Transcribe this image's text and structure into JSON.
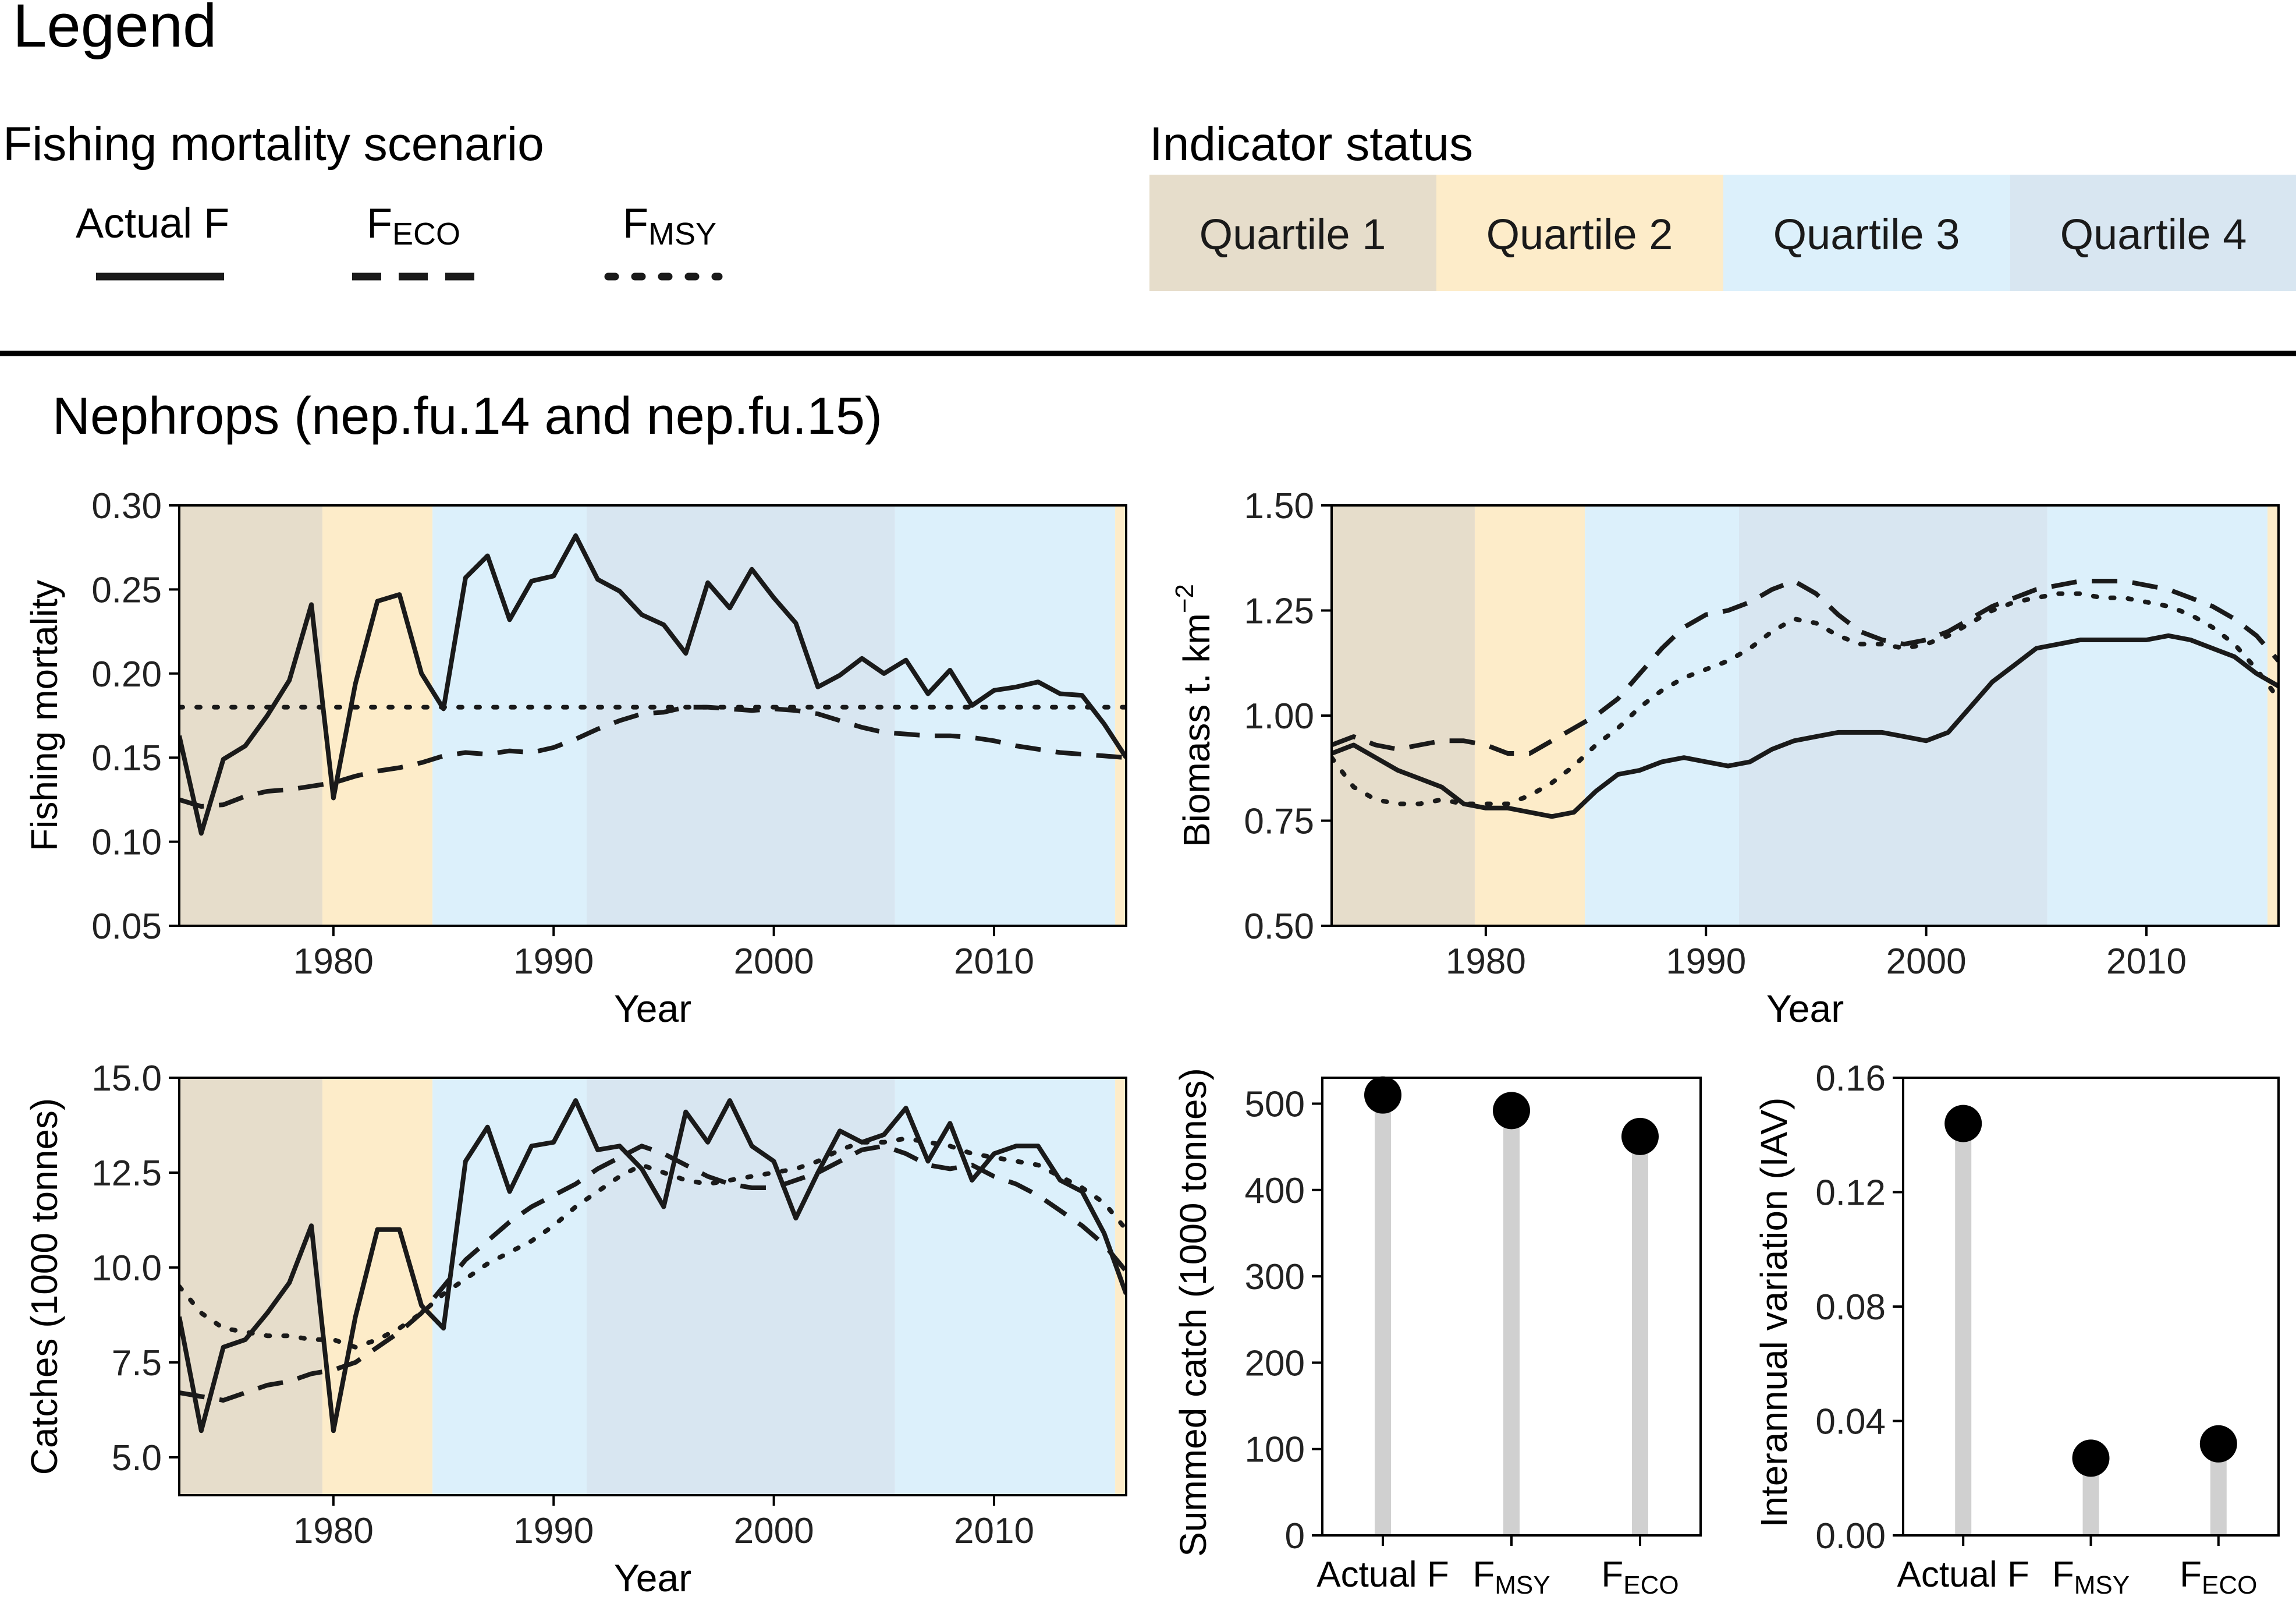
{
  "legend": {
    "heading": "Legend",
    "scenario_title": "Fishing mortality scenario",
    "scenarios": [
      {
        "key": "actual",
        "label": "Actual F",
        "sub": "",
        "style": "solid"
      },
      {
        "key": "feco",
        "label": "F",
        "sub": "ECO",
        "style": "dashed"
      },
      {
        "key": "fmsy",
        "label": "F",
        "sub": "MSY",
        "style": "dotted"
      }
    ],
    "status_title": "Indicator status",
    "quartiles": [
      {
        "label": "Quartile 1",
        "color": "#e6ddcb"
      },
      {
        "label": "Quartile 2",
        "color": "#fdecc9"
      },
      {
        "label": "Quartile 3",
        "color": "#dcf0fb"
      },
      {
        "label": "Quartile 4",
        "color": "#d8e6f1"
      }
    ]
  },
  "section_title": "Nephrops (nep.fu.14 and nep.fu.15)",
  "colors": {
    "line": "#1a1a1a",
    "frame": "#000000",
    "stem": "#d0d0d0",
    "dot": "#000000"
  },
  "bands": [
    {
      "from": 1973.0,
      "to": 1979.5,
      "q": 1
    },
    {
      "from": 1979.5,
      "to": 1984.5,
      "q": 2
    },
    {
      "from": 1984.5,
      "to": 1991.5,
      "q": 3
    },
    {
      "from": 1991.5,
      "to": 2005.5,
      "q": 4
    },
    {
      "from": 2005.5,
      "to": 2015.5,
      "q": 3
    },
    {
      "from": 2015.5,
      "to": 2016.0,
      "q": 2
    }
  ],
  "chart_data": [
    {
      "id": "fishing-mortality",
      "type": "line",
      "title": "",
      "xlabel": "Year",
      "ylabel": "Fishing mortality",
      "xlim": [
        1973,
        2016
      ],
      "ylim": [
        0.05,
        0.3
      ],
      "xticks": [
        1980,
        1990,
        2000,
        2010
      ],
      "yticks": [
        0.05,
        0.1,
        0.15,
        0.2,
        0.25,
        0.3
      ],
      "ytick_labels": [
        "0.05",
        "0.10",
        "0.15",
        "0.20",
        "0.25",
        "0.30"
      ],
      "x": [
        1973,
        1974,
        1975,
        1976,
        1977,
        1978,
        1979,
        1980,
        1981,
        1982,
        1983,
        1984,
        1985,
        1986,
        1987,
        1988,
        1989,
        1990,
        1991,
        1992,
        1993,
        1994,
        1995,
        1996,
        1997,
        1998,
        1999,
        2000,
        2001,
        2002,
        2003,
        2004,
        2005,
        2006,
        2007,
        2008,
        2009,
        2010,
        2011,
        2012,
        2013,
        2014,
        2015,
        2016
      ],
      "series": [
        {
          "name": "Actual F",
          "style": "solid",
          "values": [
            0.163,
            0.105,
            0.149,
            0.157,
            0.175,
            0.196,
            0.241,
            0.126,
            0.194,
            0.243,
            0.247,
            0.2,
            0.179,
            0.257,
            0.27,
            0.232,
            0.255,
            0.258,
            0.282,
            0.256,
            0.249,
            0.235,
            0.229,
            0.212,
            0.254,
            0.239,
            0.262,
            0.245,
            0.23,
            0.192,
            0.199,
            0.209,
            0.2,
            0.208,
            0.188,
            0.202,
            0.181,
            0.19,
            0.192,
            0.195,
            0.188,
            0.187,
            0.17,
            0.15
          ]
        },
        {
          "name": "FECO",
          "style": "dashed",
          "values": [
            0.125,
            0.121,
            0.122,
            0.127,
            0.13,
            0.131,
            0.133,
            0.135,
            0.139,
            0.142,
            0.144,
            0.147,
            0.151,
            0.153,
            0.152,
            0.154,
            0.153,
            0.156,
            0.161,
            0.167,
            0.172,
            0.176,
            0.177,
            0.18,
            0.18,
            0.179,
            0.178,
            0.179,
            0.178,
            0.176,
            0.172,
            0.168,
            0.165,
            0.164,
            0.163,
            0.163,
            0.162,
            0.16,
            0.157,
            0.155,
            0.153,
            0.152,
            0.151,
            0.15
          ]
        },
        {
          "name": "FMSY",
          "style": "dotted",
          "values": [
            0.18,
            0.18,
            0.18,
            0.18,
            0.18,
            0.18,
            0.18,
            0.18,
            0.18,
            0.18,
            0.18,
            0.18,
            0.18,
            0.18,
            0.18,
            0.18,
            0.18,
            0.18,
            0.18,
            0.18,
            0.18,
            0.18,
            0.18,
            0.18,
            0.18,
            0.18,
            0.18,
            0.18,
            0.18,
            0.18,
            0.18,
            0.18,
            0.18,
            0.18,
            0.18,
            0.18,
            0.18,
            0.18,
            0.18,
            0.18,
            0.18,
            0.18,
            0.18,
            0.18
          ]
        }
      ]
    },
    {
      "id": "biomass",
      "type": "line",
      "title": "",
      "xlabel": "Year",
      "ylabel": "Biomass t. km",
      "ylabel_sup": "−2",
      "xlim": [
        1973,
        2016
      ],
      "ylim": [
        0.5,
        1.5
      ],
      "xticks": [
        1980,
        1990,
        2000,
        2010
      ],
      "yticks": [
        0.5,
        0.75,
        1.0,
        1.25,
        1.5
      ],
      "ytick_labels": [
        "0.50",
        "0.75",
        "1.00",
        "1.25",
        "1.50"
      ],
      "x": [
        1973,
        1974,
        1975,
        1976,
        1977,
        1978,
        1979,
        1980,
        1981,
        1982,
        1983,
        1984,
        1985,
        1986,
        1987,
        1988,
        1989,
        1990,
        1991,
        1992,
        1993,
        1994,
        1995,
        1996,
        1997,
        1998,
        1999,
        2000,
        2001,
        2002,
        2003,
        2004,
        2005,
        2006,
        2007,
        2008,
        2009,
        2010,
        2011,
        2012,
        2013,
        2014,
        2015,
        2016
      ],
      "series": [
        {
          "name": "Actual F",
          "style": "solid",
          "values": [
            0.91,
            0.93,
            0.9,
            0.87,
            0.85,
            0.83,
            0.79,
            0.78,
            0.78,
            0.77,
            0.76,
            0.77,
            0.82,
            0.86,
            0.87,
            0.89,
            0.9,
            0.89,
            0.88,
            0.89,
            0.92,
            0.94,
            0.95,
            0.96,
            0.96,
            0.96,
            0.95,
            0.94,
            0.96,
            1.02,
            1.08,
            1.12,
            1.16,
            1.17,
            1.18,
            1.18,
            1.18,
            1.18,
            1.19,
            1.18,
            1.16,
            1.14,
            1.1,
            1.07
          ]
        },
        {
          "name": "FECO",
          "style": "dashed",
          "values": [
            0.93,
            0.95,
            0.93,
            0.92,
            0.93,
            0.94,
            0.94,
            0.93,
            0.91,
            0.91,
            0.94,
            0.97,
            1.0,
            1.04,
            1.1,
            1.16,
            1.21,
            1.24,
            1.25,
            1.27,
            1.3,
            1.32,
            1.29,
            1.24,
            1.2,
            1.18,
            1.17,
            1.18,
            1.2,
            1.23,
            1.26,
            1.28,
            1.3,
            1.31,
            1.32,
            1.32,
            1.32,
            1.31,
            1.3,
            1.28,
            1.26,
            1.23,
            1.19,
            1.13
          ]
        },
        {
          "name": "FMSY",
          "style": "dotted",
          "values": [
            0.9,
            0.83,
            0.8,
            0.79,
            0.79,
            0.8,
            0.79,
            0.79,
            0.79,
            0.81,
            0.84,
            0.88,
            0.93,
            0.97,
            1.02,
            1.06,
            1.09,
            1.11,
            1.13,
            1.16,
            1.2,
            1.23,
            1.22,
            1.19,
            1.17,
            1.17,
            1.16,
            1.17,
            1.19,
            1.22,
            1.25,
            1.27,
            1.28,
            1.29,
            1.29,
            1.28,
            1.28,
            1.27,
            1.26,
            1.24,
            1.21,
            1.17,
            1.11,
            1.04
          ]
        }
      ]
    },
    {
      "id": "catches",
      "type": "line",
      "title": "",
      "xlabel": "Year",
      "ylabel": "Catches (1000 tonnes)",
      "xlim": [
        1973,
        2016
      ],
      "ylim": [
        4.0,
        15.0
      ],
      "xticks": [
        1980,
        1990,
        2000,
        2010
      ],
      "yticks": [
        5.0,
        7.5,
        10.0,
        12.5,
        15.0
      ],
      "ytick_labels": [
        "5.0",
        "7.5",
        "10.0",
        "12.5",
        "15.0"
      ],
      "x": [
        1973,
        1974,
        1975,
        1976,
        1977,
        1978,
        1979,
        1980,
        1981,
        1982,
        1983,
        1984,
        1985,
        1986,
        1987,
        1988,
        1989,
        1990,
        1991,
        1992,
        1993,
        1994,
        1995,
        1996,
        1997,
        1998,
        1999,
        2000,
        2001,
        2002,
        2003,
        2004,
        2005,
        2006,
        2007,
        2008,
        2009,
        2010,
        2011,
        2012,
        2013,
        2014,
        2015,
        2016
      ],
      "series": [
        {
          "name": "Actual F",
          "style": "solid",
          "values": [
            8.7,
            5.7,
            7.9,
            8.1,
            8.8,
            9.6,
            11.1,
            5.7,
            8.7,
            11.0,
            11.0,
            9.0,
            8.4,
            12.8,
            13.7,
            12.0,
            13.2,
            13.3,
            14.4,
            13.1,
            13.2,
            12.6,
            11.6,
            14.1,
            13.3,
            14.4,
            13.2,
            12.8,
            11.3,
            12.5,
            13.6,
            13.3,
            13.5,
            14.2,
            12.8,
            13.8,
            12.3,
            13.0,
            13.2,
            13.2,
            12.3,
            12.0,
            10.9,
            9.3
          ]
        },
        {
          "name": "FECO",
          "style": "dashed",
          "values": [
            6.7,
            6.6,
            6.5,
            6.7,
            6.9,
            7.0,
            7.2,
            7.3,
            7.5,
            7.9,
            8.3,
            8.8,
            9.5,
            10.2,
            10.7,
            11.2,
            11.6,
            11.9,
            12.2,
            12.6,
            12.9,
            13.2,
            13.0,
            12.7,
            12.4,
            12.2,
            12.1,
            12.1,
            12.3,
            12.5,
            12.8,
            13.1,
            13.2,
            13.0,
            12.7,
            12.6,
            12.7,
            12.4,
            12.2,
            11.9,
            11.5,
            11.1,
            10.6,
            9.9
          ]
        },
        {
          "name": "FMSY",
          "style": "dotted",
          "values": [
            9.5,
            8.8,
            8.4,
            8.3,
            8.2,
            8.2,
            8.1,
            8.1,
            7.9,
            8.1,
            8.4,
            8.8,
            9.3,
            9.7,
            10.1,
            10.4,
            10.7,
            11.1,
            11.6,
            12.0,
            12.4,
            12.7,
            12.5,
            12.3,
            12.2,
            12.3,
            12.4,
            12.5,
            12.6,
            12.8,
            13.1,
            13.3,
            13.3,
            13.4,
            13.3,
            13.2,
            13.0,
            12.9,
            12.8,
            12.7,
            12.4,
            12.1,
            11.7,
            11.0
          ]
        }
      ]
    },
    {
      "id": "summed-catch",
      "type": "scatter",
      "title": "",
      "xlabel": "",
      "ylabel": "Summed catch (1000 tonnes)",
      "ylim": [
        0,
        530
      ],
      "yticks": [
        0,
        100,
        200,
        300,
        400,
        500
      ],
      "ytick_labels": [
        "0",
        "100",
        "200",
        "300",
        "400",
        "500"
      ],
      "categories": [
        {
          "label": "Actual F",
          "sub": ""
        },
        {
          "label": "F",
          "sub": "MSY"
        },
        {
          "label": "F",
          "sub": "ECO"
        }
      ],
      "values": [
        510,
        492,
        462
      ]
    },
    {
      "id": "interannual-variation",
      "type": "scatter",
      "title": "",
      "xlabel": "",
      "ylabel": "Interannual variation (IAV)",
      "ylim": [
        0,
        0.16
      ],
      "yticks": [
        0.0,
        0.04,
        0.08,
        0.12,
        0.16
      ],
      "ytick_labels": [
        "0.00",
        "0.04",
        "0.08",
        "0.12",
        "0.16"
      ],
      "categories": [
        {
          "label": "Actual F",
          "sub": ""
        },
        {
          "label": "F",
          "sub": "MSY"
        },
        {
          "label": "F",
          "sub": "ECO"
        }
      ],
      "values": [
        0.144,
        0.027,
        0.032
      ]
    }
  ]
}
